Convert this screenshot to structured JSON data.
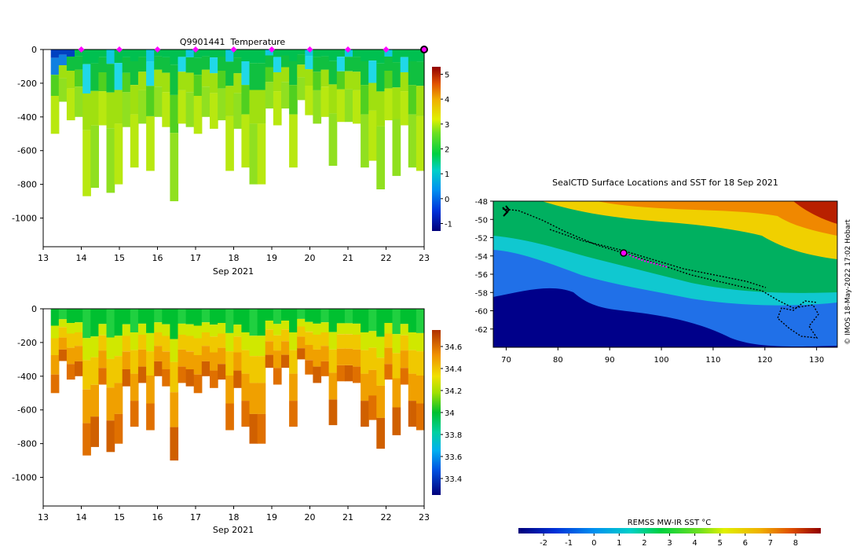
{
  "chart_data": [
    {
      "type": "heatmap",
      "title": "Q9901441  Temperature",
      "xlabel": "Sep 2021",
      "ylabel": "",
      "xlim": [
        13,
        23
      ],
      "ylim": [
        -1170,
        0
      ],
      "x_ticks": [
        13,
        14,
        15,
        16,
        17,
        18,
        19,
        20,
        21,
        22,
        23
      ],
      "y_ticks": [
        0,
        -200,
        -400,
        -600,
        -800,
        -1000
      ],
      "colorbar": {
        "min": -1.3,
        "max": 5.3,
        "ticks": [
          -1,
          0,
          1,
          2,
          3,
          4,
          5
        ]
      },
      "surface_markers_day": [
        14,
        15,
        16,
        17,
        18,
        19,
        20,
        21,
        22
      ],
      "current_position_day": 23,
      "profile_max_depths": [
        -500,
        -310,
        -420,
        -400,
        -870,
        -820,
        -450,
        -850,
        -800,
        -460,
        -700,
        -440,
        -720,
        -400,
        -460,
        -900,
        -440,
        -460,
        -500,
        -400,
        -470,
        -420,
        -720,
        -470,
        -700,
        -800,
        -800,
        -350,
        -450,
        -350,
        -700,
        -300,
        -390,
        -440,
        -400,
        -690,
        -430,
        -430,
        -440,
        -700,
        -660,
        -830,
        -420,
        -750,
        -450,
        -700,
        -720
      ]
    },
    {
      "type": "heatmap",
      "title": "",
      "xlabel": "Sep 2021",
      "ylabel": "",
      "xlim": [
        13,
        23
      ],
      "ylim": [
        -1170,
        0
      ],
      "x_ticks": [
        13,
        14,
        15,
        16,
        17,
        18,
        19,
        20,
        21,
        22,
        23
      ],
      "y_ticks": [
        0,
        -200,
        -400,
        -600,
        -800,
        -1000
      ],
      "colorbar": {
        "min": 33.25,
        "max": 34.75,
        "ticks": [
          "33.4",
          "33.6",
          "33.8",
          "34",
          "34.2",
          "34.4",
          "34.6"
        ]
      },
      "profile_max_depths": [
        -500,
        -310,
        -420,
        -400,
        -870,
        -820,
        -450,
        -850,
        -800,
        -460,
        -700,
        -440,
        -720,
        -400,
        -460,
        -900,
        -440,
        -460,
        -500,
        -400,
        -470,
        -420,
        -720,
        -470,
        -700,
        -800,
        -800,
        -350,
        -450,
        -350,
        -700,
        -300,
        -390,
        -440,
        -400,
        -690,
        -430,
        -430,
        -440,
        -700,
        -660,
        -830,
        -420,
        -750,
        -450,
        -700,
        -720
      ]
    },
    {
      "type": "heatmap",
      "title": "SealCTD Surface Locations and SST for 18 Sep 2021",
      "xlabel": "",
      "ylabel": "",
      "xlim": [
        67.5,
        134
      ],
      "ylim": [
        -64,
        -48
      ],
      "x_ticks": [
        70,
        80,
        90,
        100,
        110,
        120,
        130
      ],
      "y_ticks": [
        -48,
        -50,
        -52,
        -54,
        -56,
        -58,
        -60,
        -62
      ],
      "current_position": [
        92.5,
        -53.8
      ],
      "colorbar": {
        "label": "REMSS MW-IR SST °C",
        "min": -3,
        "max": 9,
        "ticks": [
          -2,
          -1,
          0,
          1,
          2,
          3,
          4,
          5,
          6,
          7,
          8
        ]
      },
      "credit": "© IMOS 18-May-2022 17:02 Hobart"
    }
  ]
}
